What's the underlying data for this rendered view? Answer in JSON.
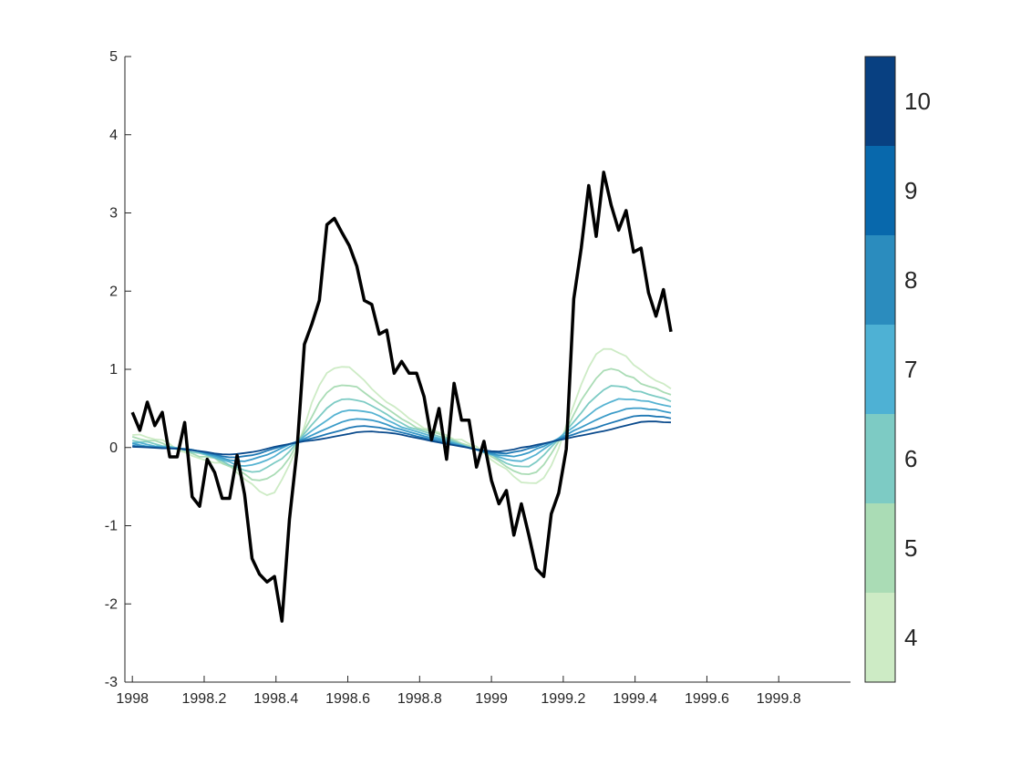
{
  "chart_data": {
    "type": "line",
    "title": "",
    "xlabel": "",
    "ylabel": "",
    "xlim": [
      1997.9792,
      2000.0
    ],
    "ylim": [
      -3,
      5
    ],
    "x_ticks": [
      1998,
      1998.2,
      1998.4,
      1998.6,
      1998.8,
      1999,
      1999.2,
      1999.4,
      1999.6,
      1999.8
    ],
    "x_tick_labels": [
      "1998",
      "1998.2",
      "1998.4",
      "1998.6",
      "1998.8",
      "1999",
      "1999.2",
      "1999.4",
      "1999.6",
      "1999.8"
    ],
    "y_ticks": [
      -3,
      -2,
      -1,
      0,
      1,
      2,
      3,
      4,
      5
    ],
    "y_tick_labels": [
      "-3",
      "-2",
      "-1",
      "0",
      "1",
      "2",
      "3",
      "4",
      "5"
    ],
    "grid": false,
    "x_start": 1998.0,
    "x_step": 0.020833,
    "main_series": {
      "color": "#000000",
      "values": [
        0.45,
        0.22,
        0.58,
        0.28,
        0.45,
        -0.12,
        -0.12,
        0.32,
        -0.63,
        -0.75,
        -0.15,
        -0.32,
        -0.65,
        -0.65,
        -0.1,
        -0.6,
        -1.42,
        -1.62,
        -1.72,
        -1.65,
        -2.22,
        -0.92,
        -0.05,
        1.32,
        1.58,
        1.88,
        2.85,
        2.93,
        2.75,
        2.58,
        2.32,
        1.88,
        1.83,
        1.45,
        1.5,
        0.95,
        1.1,
        0.95,
        0.95,
        0.65,
        0.1,
        0.5,
        -0.15,
        0.82,
        0.35,
        0.35,
        -0.25,
        0.08,
        -0.42,
        -0.72,
        -0.55,
        -1.12,
        -0.72,
        -1.12,
        -1.55,
        -1.65,
        -0.85,
        -0.58,
        -0.02,
        1.9,
        2.55,
        3.35,
        2.7,
        3.52,
        3.1,
        2.78,
        3.03,
        2.5,
        2.55,
        1.98,
        1.68,
        2.02,
        1.48
      ]
    },
    "series": [
      {
        "name": "4",
        "color": "#cdebc5",
        "amp": 1.45
      },
      {
        "name": "5",
        "color": "#aadcb5",
        "amp": 1.2
      },
      {
        "name": "6",
        "color": "#7dcbc4",
        "amp": 1.0
      },
      {
        "name": "7",
        "color": "#56b3d2",
        "amp": 0.83
      },
      {
        "name": "8",
        "color": "#3a9bc8",
        "amp": 0.68
      },
      {
        "name": "9",
        "color": "#1f78b4",
        "amp": 0.55
      },
      {
        "name": "10",
        "color": "#0a4a8c",
        "amp": 0.45
      }
    ],
    "colorbar": {
      "position": "right",
      "levels": [
        {
          "label": "4",
          "color": "#cdebc5"
        },
        {
          "label": "5",
          "color": "#aadcb5"
        },
        {
          "label": "6",
          "color": "#7dcbc4"
        },
        {
          "label": "7",
          "color": "#4eb1d4"
        },
        {
          "label": "8",
          "color": "#2b8cbe"
        },
        {
          "label": "9",
          "color": "#0868ac"
        },
        {
          "label": "10",
          "color": "#084081"
        }
      ]
    }
  }
}
